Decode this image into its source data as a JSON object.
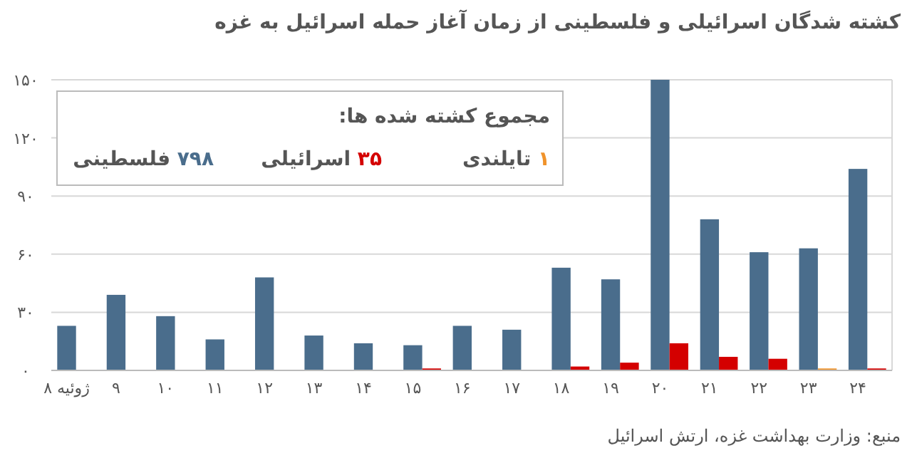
{
  "chart_data": {
    "type": "bar",
    "title": "کشته شدگان اسرائیلی و فلسطینی از زمان آغاز حمله اسرائیل به غزه",
    "categories": [
      "۸ ژوئیه",
      "۹",
      "۱۰",
      "۱۱",
      "۱۲",
      "۱۳",
      "۱۴",
      "۱۵",
      "۱۶",
      "۱۷",
      "۱۸",
      "۱۹",
      "۲۰",
      "۲۱",
      "۲۲",
      "۲۳",
      "۲۴"
    ],
    "series": [
      {
        "name": "۷۹۸ فلسطینی",
        "color": "#4a6d8c",
        "values": [
          23,
          39,
          28,
          16,
          48,
          18,
          14,
          13,
          23,
          21,
          53,
          47,
          150,
          78,
          61,
          63,
          104
        ]
      },
      {
        "name": "۳۵ اسرائیلی",
        "color": "#d40000",
        "values": [
          null,
          null,
          null,
          null,
          null,
          null,
          null,
          1,
          null,
          null,
          2,
          4,
          14,
          7,
          6,
          null,
          1
        ]
      },
      {
        "name": "۱ تایلندی",
        "color": "#f0932b",
        "values": [
          null,
          null,
          null,
          null,
          null,
          null,
          null,
          null,
          null,
          null,
          null,
          null,
          null,
          null,
          null,
          1,
          null
        ]
      }
    ],
    "legend_title": "مجموع کشته شده ها:",
    "legend": "top left",
    "ylim": [
      0,
      150
    ],
    "yticks": [
      {
        "value": 0,
        "label": "۰"
      },
      {
        "value": 30,
        "label": "۳۰"
      },
      {
        "value": 60,
        "label": "۶۰"
      },
      {
        "value": 90,
        "label": "۹۰"
      },
      {
        "value": 120,
        "label": "۱۲۰"
      },
      {
        "value": 150,
        "label": "۱۵۰"
      }
    ],
    "grid": "y",
    "annotations": [
      "منبع: وزارت بهداشت غزه، ارتش اسرائیل"
    ]
  }
}
